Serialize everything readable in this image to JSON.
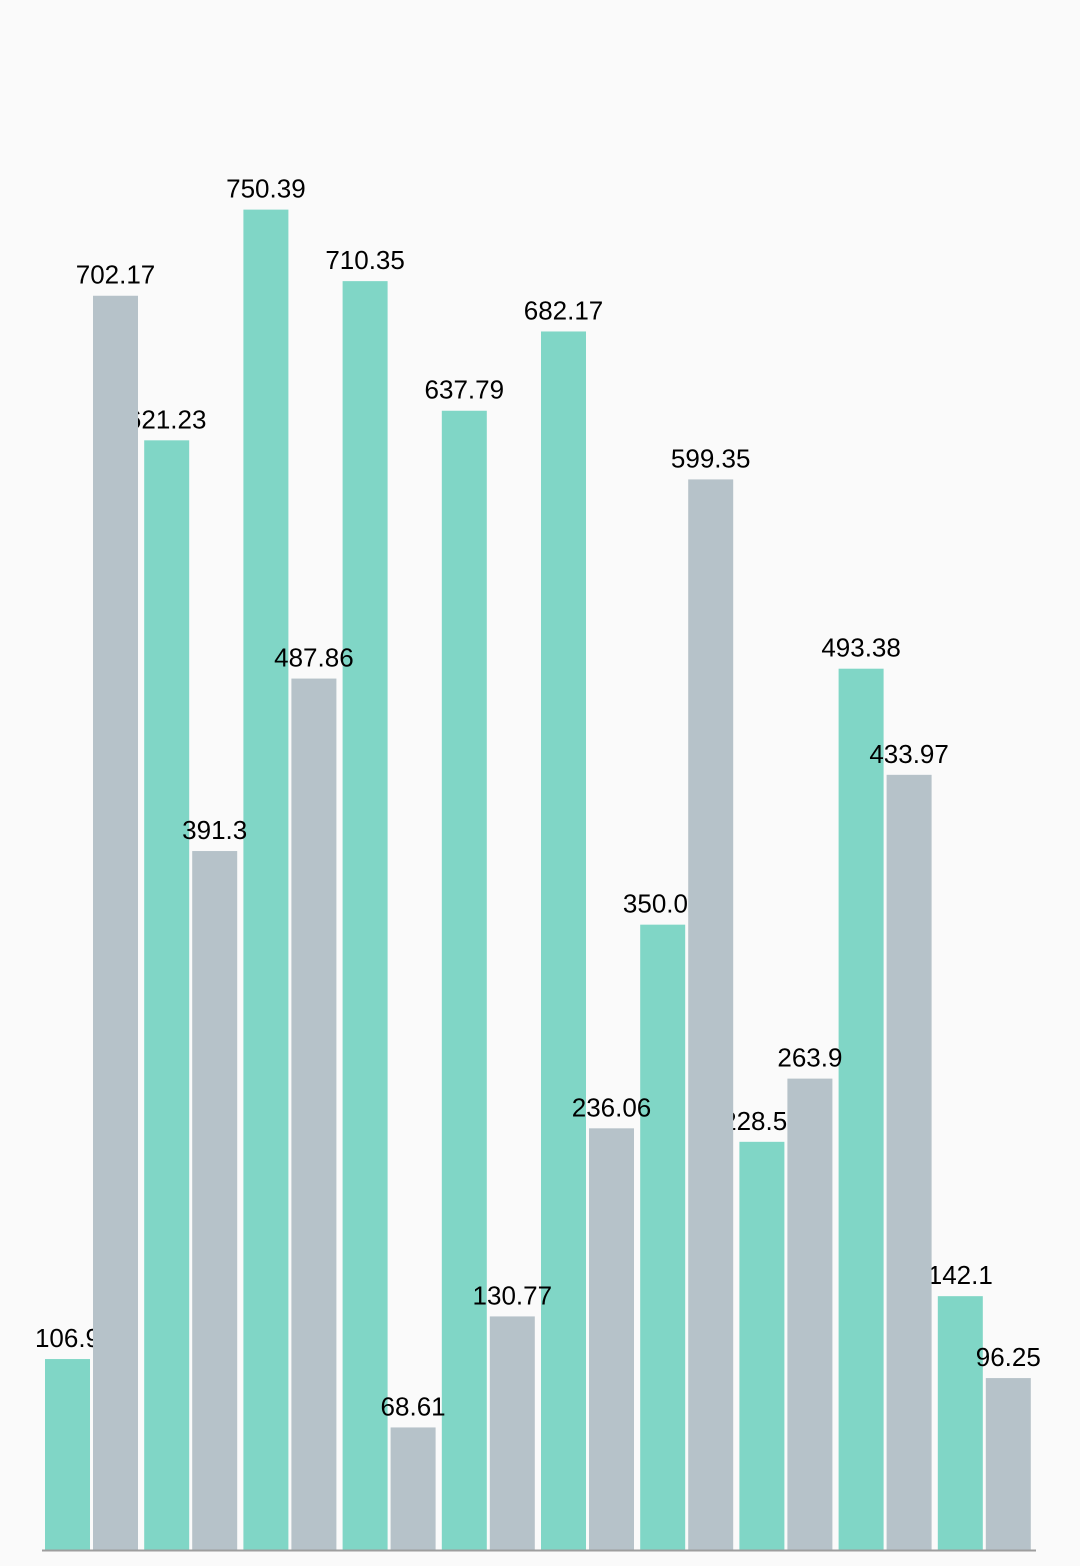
{
  "chart_data": {
    "type": "bar",
    "series": [
      {
        "color": "#80d6c6",
        "values": [
          106.9,
          621.23,
          750.39,
          710.35,
          637.79,
          682.17,
          350.09,
          228.51,
          493.38,
          142.1
        ]
      },
      {
        "color": "#b6c2c9",
        "values": [
          702.17,
          391.3,
          487.86,
          68.61,
          130.77,
          236.06,
          599.35,
          263.9,
          433.97,
          96.25
        ]
      }
    ],
    "ylim": [
      0,
      800
    ]
  }
}
